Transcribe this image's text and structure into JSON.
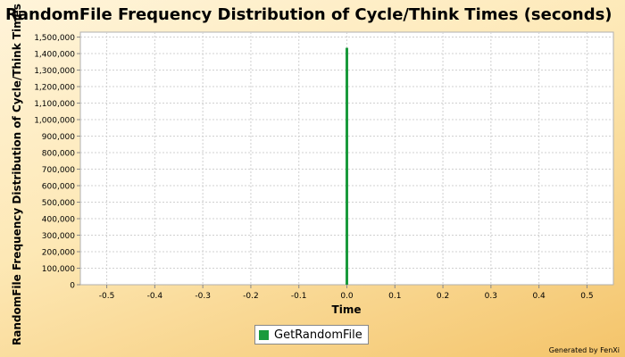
{
  "chart_data": {
    "type": "bar",
    "title": "RandomFile Frequency Distribution of Cycle/Think Times (seconds)",
    "ylabel": "RandomFile Frequency Distribution of Cycle/Think Times (seconds)",
    "xlabel": "Time",
    "xlim": [
      -0.555,
      0.555
    ],
    "ylim": [
      0,
      1530000
    ],
    "x_ticks": [
      -0.5,
      -0.4,
      -0.3,
      -0.2,
      -0.1,
      0.0,
      0.1,
      0.2,
      0.3,
      0.4,
      0.5
    ],
    "x_tick_labels": [
      "-0.5",
      "-0.4",
      "-0.3",
      "-0.2",
      "-0.1",
      "0.0",
      "0.1",
      "0.2",
      "0.3",
      "0.4",
      "0.5"
    ],
    "y_ticks": [
      0,
      100000,
      200000,
      300000,
      400000,
      500000,
      600000,
      700000,
      800000,
      900000,
      1000000,
      1100000,
      1200000,
      1300000,
      1400000,
      1500000
    ],
    "y_tick_labels": [
      "0",
      "100,000",
      "200,000",
      "300,000",
      "400,000",
      "500,000",
      "600,000",
      "700,000",
      "800,000",
      "900,000",
      "1,000,000",
      "1,100,000",
      "1,200,000",
      "1,300,000",
      "1,400,000",
      "1,500,000"
    ],
    "grid": true,
    "legend_position": "bottom",
    "series": [
      {
        "name": "GetRandomFile",
        "color": "#1a9a3c",
        "points": [
          {
            "x": 0.0,
            "y": 1435000
          }
        ]
      }
    ]
  },
  "footer": {
    "generated_by": "Generated by FenXi"
  }
}
